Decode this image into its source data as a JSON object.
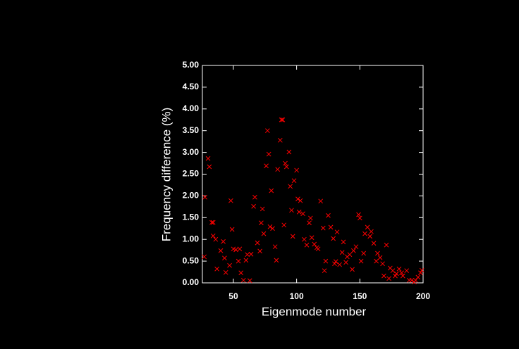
{
  "chart_data": {
    "type": "scatter",
    "x_label": "Eigenmode number",
    "y_label": "Frequency difference (%)",
    "xlim": [
      25.5,
      200
    ],
    "ylim": [
      0,
      5
    ],
    "xticks": [
      50,
      100,
      150,
      200
    ],
    "yticks": [
      {
        "value": 0,
        "label": "0.00"
      },
      {
        "value": 0.5,
        "label": "0.50"
      },
      {
        "value": 1,
        "label": "1.00"
      },
      {
        "value": 1.5,
        "label": "1.50"
      },
      {
        "value": 2,
        "label": "2.00"
      },
      {
        "value": 2.5,
        "label": "2.50"
      },
      {
        "value": 3,
        "label": "3.00"
      },
      {
        "value": 3.5,
        "label": "3.50"
      },
      {
        "value": 4,
        "label": "4.00"
      },
      {
        "value": 4.5,
        "label": "4.50"
      },
      {
        "value": 5,
        "label": "5.00"
      }
    ],
    "series": [
      {
        "color": "#ff0000",
        "x": [
          27,
          27.5,
          30,
          31,
          33,
          34,
          34,
          36,
          37,
          40,
          42,
          43,
          44,
          47,
          48,
          49,
          50,
          52,
          54,
          55,
          56,
          58,
          60,
          61,
          63,
          64,
          66,
          67,
          69,
          71,
          72,
          73,
          74,
          76,
          77,
          78,
          79,
          80,
          81,
          83,
          84,
          85,
          87,
          88,
          89,
          90,
          91,
          92,
          94,
          95,
          96,
          97,
          98,
          100,
          101,
          102,
          103,
          105,
          106,
          108,
          110,
          111,
          112,
          114,
          116,
          117,
          119,
          121,
          122,
          123,
          125,
          127,
          129,
          130,
          131,
          132,
          134,
          136,
          137,
          139,
          140,
          142,
          144,
          145,
          147,
          149,
          150,
          151,
          153,
          154,
          156,
          158,
          159,
          161,
          163,
          164,
          166,
          168,
          169,
          171,
          173,
          174,
          176,
          178,
          179,
          181,
          183,
          184,
          187,
          189,
          191,
          193,
          194,
          196,
          198,
          199
        ],
        "values": [
          0.6,
          1.97,
          2.86,
          2.67,
          1.39,
          1.39,
          1.08,
          1.0,
          0.32,
          0.74,
          0.95,
          0.57,
          0.24,
          0.4,
          1.89,
          1.23,
          0.78,
          0.76,
          0.5,
          0.78,
          0.23,
          0.06,
          0.52,
          0.65,
          0.05,
          0.66,
          1.76,
          1.97,
          0.92,
          0.73,
          1.38,
          1.7,
          1.13,
          2.69,
          3.5,
          2.96,
          1.29,
          2.12,
          1.25,
          0.83,
          0.52,
          2.61,
          3.28,
          3.75,
          3.75,
          1.33,
          2.75,
          2.67,
          3.01,
          2.22,
          1.67,
          1.07,
          2.35,
          2.59,
          1.93,
          1.63,
          1.89,
          1.59,
          1.0,
          0.87,
          1.38,
          1.49,
          1.04,
          0.89,
          0.81,
          0.78,
          1.88,
          1.26,
          0.28,
          0.5,
          1.55,
          1.28,
          1.02,
          0.44,
          0.49,
          1.17,
          0.42,
          0.7,
          0.94,
          0.47,
          0.6,
          0.65,
          0.31,
          0.74,
          0.83,
          1.57,
          1.49,
          0.5,
          0.68,
          1.13,
          1.28,
          1.07,
          1.18,
          0.91,
          0.5,
          0.68,
          0.58,
          0.44,
          0.16,
          0.87,
          0.1,
          0.34,
          0.28,
          0.16,
          0.21,
          0.32,
          0.23,
          0.16,
          0.28,
          0.06,
          0.06,
          0.02,
          0.06,
          0.13,
          0.23,
          0.29
        ]
      }
    ]
  }
}
